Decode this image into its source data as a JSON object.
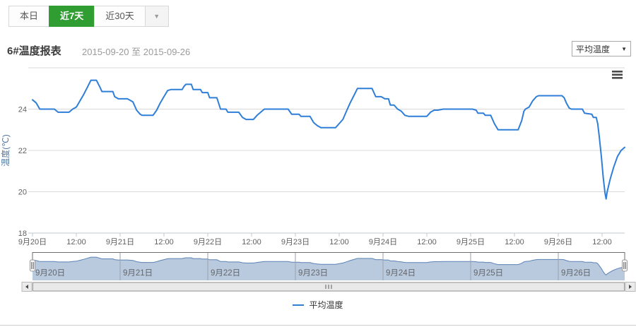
{
  "toolbar": {
    "tabs": [
      {
        "label": "本日",
        "active": false
      },
      {
        "label": "近7天",
        "active": true
      },
      {
        "label": "近30天",
        "active": false
      }
    ],
    "caret_icon": "▼"
  },
  "header": {
    "title": "6#温度报表",
    "date_range": "2015-09-20 至 2015-09-26",
    "series_select": {
      "value": "平均温度",
      "caret_icon": "▼"
    }
  },
  "icons": {
    "chart_menu": "hamburger",
    "scroll_left": "left-triangle",
    "scroll_right": "right-triangle",
    "caret_down": "▼"
  },
  "colors": {
    "accent_green": "#2f9d32",
    "line_blue": "#2f7ed8",
    "navigator_fill": "#b9c9de",
    "navigator_line": "#5c83b5",
    "grid": "#d9d9d9",
    "axis_line": "#c0c8d2",
    "axis_label": "#606060",
    "y_title": "#4d759e"
  },
  "chart_data": {
    "type": "line",
    "title": "",
    "xlabel": "",
    "ylabel": "温度(℃)",
    "ylim": [
      18,
      26
    ],
    "yticks": [
      18,
      20,
      22,
      24
    ],
    "grid": true,
    "legend_position": "bottom",
    "x_unit": "hours since 2015-09-20 00:00",
    "x_range_hours": [
      0,
      162.2
    ],
    "xtick_interval_hours": 12,
    "xtick_labels": [
      "9月20日",
      "12:00",
      "9月21日",
      "12:00",
      "9月22日",
      "12:00",
      "9月23日",
      "12:00",
      "9月24日",
      "12:00",
      "9月25日",
      "12:00",
      "9月26日",
      "12:00"
    ],
    "navigator_day_labels": [
      "9月20日",
      "9月21日",
      "9月22日",
      "9月23日",
      "9月24日",
      "9月25日",
      "9月26日"
    ],
    "legend": [
      {
        "name": "平均温度",
        "color": "#2f7ed8"
      }
    ],
    "series": [
      {
        "name": "平均温度",
        "color": "#2f7ed8",
        "points": [
          [
            0,
            24.45
          ],
          [
            1,
            24.3
          ],
          [
            2,
            24.0
          ],
          [
            6,
            24.0
          ],
          [
            7,
            23.85
          ],
          [
            10,
            23.85
          ],
          [
            11,
            24.0
          ],
          [
            12,
            24.1
          ],
          [
            13,
            24.4
          ],
          [
            14,
            24.7
          ],
          [
            15,
            25.05
          ],
          [
            16,
            25.4
          ],
          [
            17.5,
            25.4
          ],
          [
            18.5,
            25.05
          ],
          [
            19,
            24.85
          ],
          [
            22,
            24.85
          ],
          [
            22.5,
            24.6
          ],
          [
            23.5,
            24.5
          ],
          [
            26,
            24.5
          ],
          [
            27.5,
            24.35
          ],
          [
            28.5,
            23.95
          ],
          [
            29.5,
            23.75
          ],
          [
            30,
            23.7
          ],
          [
            33,
            23.7
          ],
          [
            34,
            23.95
          ],
          [
            35,
            24.3
          ],
          [
            36,
            24.6
          ],
          [
            37,
            24.9
          ],
          [
            38,
            24.95
          ],
          [
            41,
            24.95
          ],
          [
            41.5,
            25.1
          ],
          [
            42,
            25.2
          ],
          [
            43.5,
            25.2
          ],
          [
            44,
            24.95
          ],
          [
            46,
            24.95
          ],
          [
            46.5,
            24.8
          ],
          [
            48,
            24.8
          ],
          [
            48.5,
            24.55
          ],
          [
            50.5,
            24.55
          ],
          [
            51.5,
            24.0
          ],
          [
            53,
            24.0
          ],
          [
            53.5,
            23.85
          ],
          [
            56.5,
            23.85
          ],
          [
            57.5,
            23.6
          ],
          [
            58.5,
            23.5
          ],
          [
            60.5,
            23.5
          ],
          [
            61.5,
            23.7
          ],
          [
            62.5,
            23.85
          ],
          [
            63.5,
            24.0
          ],
          [
            70,
            24.0
          ],
          [
            71,
            23.75
          ],
          [
            73,
            23.75
          ],
          [
            73.5,
            23.65
          ],
          [
            76,
            23.65
          ],
          [
            77,
            23.35
          ],
          [
            78,
            23.2
          ],
          [
            79,
            23.1
          ],
          [
            83,
            23.1
          ],
          [
            84,
            23.3
          ],
          [
            85,
            23.5
          ],
          [
            86,
            23.9
          ],
          [
            87,
            24.3
          ],
          [
            88,
            24.65
          ],
          [
            89,
            25.0
          ],
          [
            93,
            25.0
          ],
          [
            94,
            24.6
          ],
          [
            95.5,
            24.6
          ],
          [
            96.5,
            24.5
          ],
          [
            97.5,
            24.5
          ],
          [
            98,
            24.2
          ],
          [
            99,
            24.2
          ],
          [
            100,
            24.0
          ],
          [
            101,
            23.9
          ],
          [
            102,
            23.7
          ],
          [
            103,
            23.65
          ],
          [
            108,
            23.65
          ],
          [
            109,
            23.85
          ],
          [
            110,
            23.95
          ],
          [
            111,
            23.95
          ],
          [
            112.5,
            24.0
          ],
          [
            120.5,
            24.0
          ],
          [
            121.5,
            23.95
          ],
          [
            122,
            23.8
          ],
          [
            123.5,
            23.8
          ],
          [
            124,
            23.7
          ],
          [
            125.5,
            23.7
          ],
          [
            126.5,
            23.3
          ],
          [
            127.5,
            23.0
          ],
          [
            133,
            23.0
          ],
          [
            134,
            23.45
          ],
          [
            134.6,
            23.9
          ],
          [
            135,
            24.0
          ],
          [
            136,
            24.1
          ],
          [
            137,
            24.4
          ],
          [
            138,
            24.6
          ],
          [
            138.6,
            24.65
          ],
          [
            145,
            24.65
          ],
          [
            145.6,
            24.55
          ],
          [
            146.2,
            24.3
          ],
          [
            147,
            24.05
          ],
          [
            147.6,
            24.0
          ],
          [
            150.6,
            24.0
          ],
          [
            151.2,
            23.8
          ],
          [
            153.2,
            23.75
          ],
          [
            153.6,
            23.6
          ],
          [
            154.4,
            23.6
          ],
          [
            154.8,
            23.3
          ],
          [
            155.2,
            22.7
          ],
          [
            155.8,
            21.7
          ],
          [
            156.3,
            20.7
          ],
          [
            156.8,
            19.95
          ],
          [
            157.1,
            19.65
          ],
          [
            157.4,
            20.0
          ],
          [
            158.2,
            20.6
          ],
          [
            159.2,
            21.2
          ],
          [
            160.2,
            21.7
          ],
          [
            161.2,
            22.0
          ],
          [
            162.2,
            22.15
          ]
        ]
      }
    ]
  }
}
